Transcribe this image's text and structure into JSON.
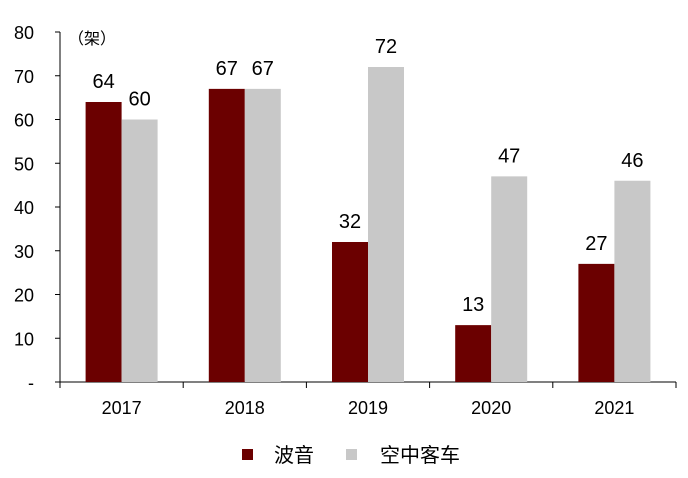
{
  "chart_data": {
    "type": "bar",
    "unit_label": "（架）",
    "categories": [
      "2017",
      "2018",
      "2019",
      "2020",
      "2021"
    ],
    "series": [
      {
        "name": "波音",
        "values": [
          64,
          67,
          32,
          13,
          27
        ],
        "color": "#6b0000"
      },
      {
        "name": "空中客车",
        "values": [
          60,
          67,
          72,
          47,
          46
        ],
        "color": "#c8c8c8"
      }
    ],
    "ylim": [
      0,
      80
    ],
    "yticks": [
      "-",
      "10",
      "20",
      "30",
      "40",
      "50",
      "60",
      "70",
      "80"
    ],
    "grid": false,
    "legend_position": "bottom"
  }
}
